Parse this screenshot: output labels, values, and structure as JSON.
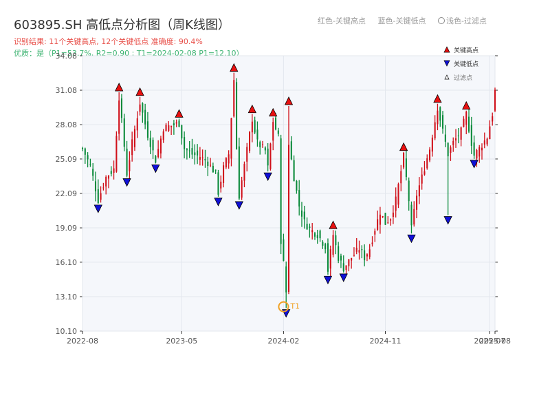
{
  "header": {
    "title": "603895.SH 高低点分析图（周K线图）",
    "result": "识别结果: 11个关键高点, 12个关键低点  准确度: 90.4%",
    "quality": "优质：是（P1=53.7%, R2=0.90 ; T1=2024-02-08 P1=12.10）"
  },
  "top_legend": {
    "red": "红色-关键高点",
    "blue": "蓝色-关键低点",
    "light": "浅色-过滤点"
  },
  "colors": {
    "up": "#d0101a",
    "down": "#0a8a3a",
    "high_marker": "#e81010",
    "low_marker": "#1010d8",
    "t1_circle": "#f0a020",
    "plot_bg": "#f5f7fb",
    "grid": "#e3e7ee"
  },
  "chart_data": {
    "type": "candlestick",
    "x_ticks": [
      "2022-08",
      "2023-05",
      "2024-02",
      "2024-11",
      "2025-07",
      "2025-08"
    ],
    "x_tick_values": [
      0,
      38,
      77,
      116,
      156,
      158
    ],
    "x_range": [
      0,
      158
    ],
    "y_ticks": [
      10.1,
      13.1,
      16.1,
      19.09,
      22.09,
      25.09,
      28.08,
      31.08,
      34.08
    ],
    "y_tick_labels": [
      "10.10",
      "13.10",
      "16.10",
      "19.09",
      "22.09",
      "25.09",
      "28.08",
      "31.08",
      "34.08"
    ],
    "ylim": [
      10.1,
      34.08
    ],
    "grid": true,
    "legend_position": "top-right",
    "legend": {
      "high": "关键高点",
      "low": "关键低点",
      "filtered": "过滤点"
    },
    "annotation": {
      "label": "T1",
      "index": 77,
      "value": 12.1
    },
    "key_highs": [
      {
        "index": 14,
        "value": 30.9
      },
      {
        "index": 22,
        "value": 30.5
      },
      {
        "index": 37,
        "value": 28.6
      },
      {
        "index": 58,
        "value": 32.6
      },
      {
        "index": 65,
        "value": 29.0
      },
      {
        "index": 73,
        "value": 28.7
      },
      {
        "index": 79,
        "value": 29.7
      },
      {
        "index": 96,
        "value": 18.9
      },
      {
        "index": 123,
        "value": 25.7
      },
      {
        "index": 136,
        "value": 29.9
      },
      {
        "index": 147,
        "value": 29.3
      }
    ],
    "key_lows": [
      {
        "index": 6,
        "value": 21.2
      },
      {
        "index": 17,
        "value": 23.5
      },
      {
        "index": 28,
        "value": 24.7
      },
      {
        "index": 52,
        "value": 21.8
      },
      {
        "index": 60,
        "value": 21.5
      },
      {
        "index": 71,
        "value": 24.0
      },
      {
        "index": 78,
        "value": 12.1
      },
      {
        "index": 94,
        "value": 15.0
      },
      {
        "index": 100,
        "value": 15.2
      },
      {
        "index": 126,
        "value": 18.6
      },
      {
        "index": 140,
        "value": 20.2
      },
      {
        "index": 150,
        "value": 25.1
      }
    ],
    "path": [
      [
        0,
        26.0
      ],
      [
        3,
        24.5
      ],
      [
        6,
        21.5
      ],
      [
        9,
        23.5
      ],
      [
        12,
        24.2
      ],
      [
        14,
        30.5
      ],
      [
        16,
        26.2
      ],
      [
        17,
        23.8
      ],
      [
        19,
        26.5
      ],
      [
        22,
        30.0
      ],
      [
        25,
        27.2
      ],
      [
        28,
        25.0
      ],
      [
        31,
        27.8
      ],
      [
        34,
        28.0
      ],
      [
        37,
        28.2
      ],
      [
        39,
        26.0
      ],
      [
        42,
        25.5
      ],
      [
        45,
        25.3
      ],
      [
        48,
        24.8
      ],
      [
        51,
        23.8
      ],
      [
        52,
        22.2
      ],
      [
        54,
        24.3
      ],
      [
        56,
        25.5
      ],
      [
        58,
        32.0
      ],
      [
        59,
        26.0
      ],
      [
        60,
        21.9
      ],
      [
        62,
        24.5
      ],
      [
        65,
        28.6
      ],
      [
        67,
        26.5
      ],
      [
        70,
        25.8
      ],
      [
        71,
        24.3
      ],
      [
        73,
        28.4
      ],
      [
        75,
        27.0
      ],
      [
        76,
        18.0
      ],
      [
        77,
        16.0
      ],
      [
        78,
        13.5
      ],
      [
        79,
        26.5
      ],
      [
        81,
        23.5
      ],
      [
        83,
        21.0
      ],
      [
        85,
        19.6
      ],
      [
        87,
        19.0
      ],
      [
        90,
        18.5
      ],
      [
        93,
        17.5
      ],
      [
        94,
        15.4
      ],
      [
        96,
        18.5
      ],
      [
        98,
        16.5
      ],
      [
        100,
        15.6
      ],
      [
        103,
        16.5
      ],
      [
        106,
        17.3
      ],
      [
        108,
        16.5
      ],
      [
        110,
        17.3
      ],
      [
        112,
        19.0
      ],
      [
        114,
        20.5
      ],
      [
        116,
        19.5
      ],
      [
        118,
        20.0
      ],
      [
        120,
        21.5
      ],
      [
        123,
        25.3
      ],
      [
        125,
        21.5
      ],
      [
        126,
        19.0
      ],
      [
        128,
        22.0
      ],
      [
        130,
        23.5
      ],
      [
        133,
        26.0
      ],
      [
        136,
        29.6
      ],
      [
        138,
        27.5
      ],
      [
        140,
        25.5
      ],
      [
        142,
        26.5
      ],
      [
        145,
        27.5
      ],
      [
        147,
        29.0
      ],
      [
        149,
        26.5
      ],
      [
        150,
        25.4
      ],
      [
        152,
        26.0
      ],
      [
        155,
        27.0
      ],
      [
        157,
        29.0
      ],
      [
        158,
        31.0
      ]
    ]
  }
}
